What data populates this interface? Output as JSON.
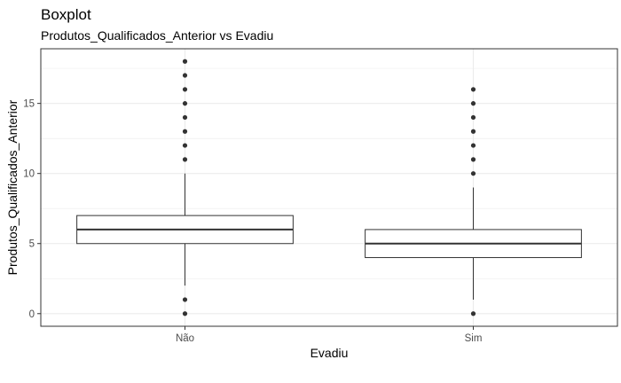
{
  "chart_data": {
    "type": "boxplot",
    "title": "Boxplot",
    "subtitle": "Produtos_Qualificados_Anterior vs Evadiu",
    "xlabel": "Evadiu",
    "ylabel": "Produtos_Qualificados_Anterior",
    "categories": [
      "Não",
      "Sim"
    ],
    "yticks": [
      0,
      5,
      10,
      15
    ],
    "ylim": [
      -0.9,
      18.9
    ],
    "grid": true,
    "boxes": [
      {
        "category": "Não",
        "lower_whisker": 2,
        "q1": 5,
        "median": 6,
        "q3": 7,
        "upper_whisker": 10,
        "outliers": [
          0,
          1,
          11,
          12,
          13,
          14,
          15,
          16,
          17,
          18
        ]
      },
      {
        "category": "Sim",
        "lower_whisker": 1,
        "q1": 4,
        "median": 5,
        "q3": 6,
        "upper_whisker": 9,
        "outliers": [
          0,
          10,
          11,
          12,
          13,
          14,
          15,
          16
        ]
      }
    ]
  },
  "colors": {
    "panel_border": "#333333",
    "grid": "#ebebeb",
    "box_stroke": "#333333",
    "median": "#333333",
    "point": "#333333"
  }
}
